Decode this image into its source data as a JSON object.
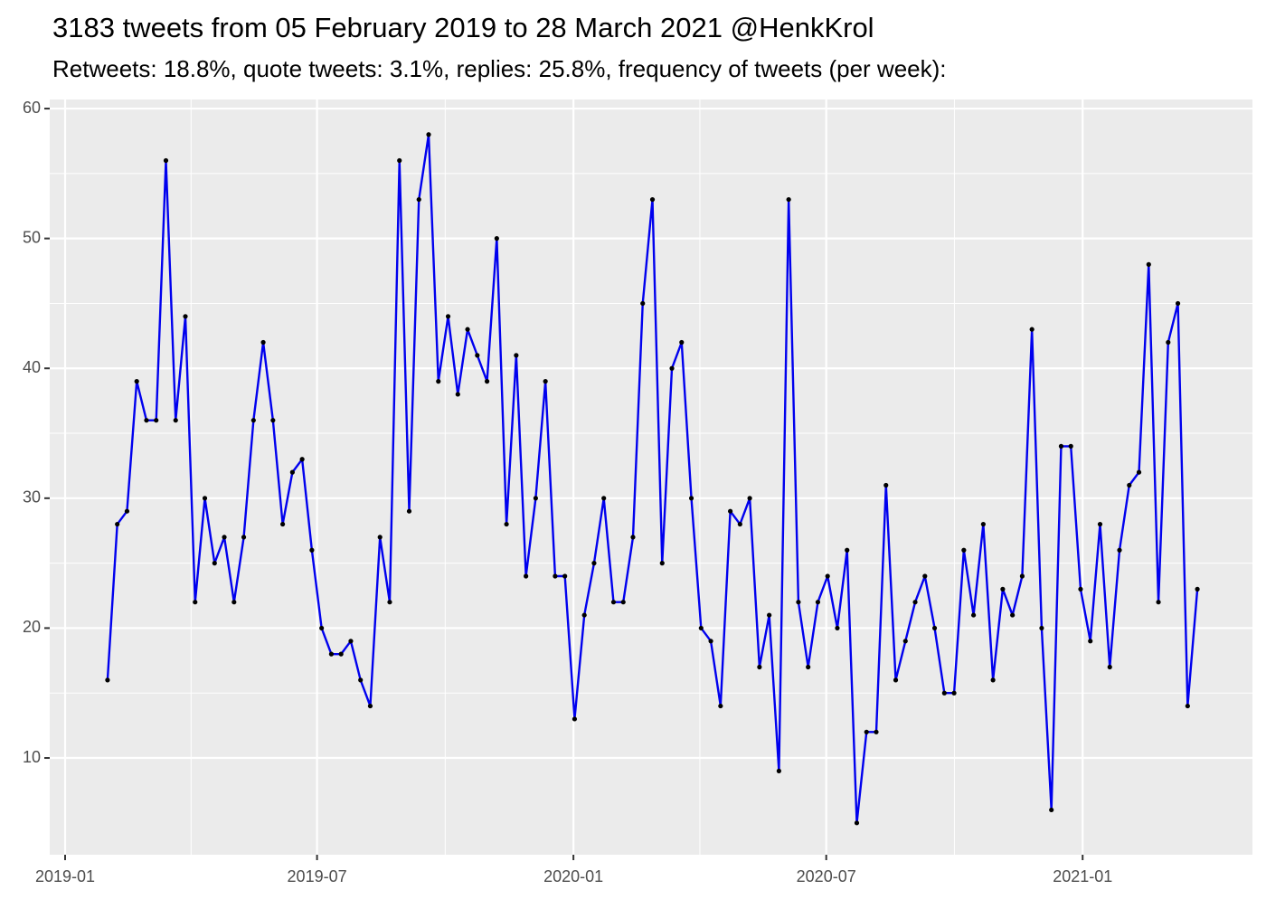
{
  "chart_data": {
    "type": "line",
    "title": "3183 tweets from 05 February 2019 to 28 March 2021 @HenkKrol",
    "subtitle": "Retweets: 18.8%, quote tweets: 3.1%, replies: 25.8%, frequency of tweets (per week):",
    "series": [
      {
        "color": "#0000ee",
        "marker_color": "#000000",
        "values": [
          16,
          28,
          29,
          39,
          36,
          36,
          56,
          36,
          44,
          22,
          30,
          25,
          27,
          22,
          27,
          36,
          42,
          36,
          28,
          32,
          33,
          26,
          20,
          18,
          18,
          19,
          16,
          14,
          27,
          22,
          56,
          29,
          53,
          58,
          39,
          44,
          38,
          43,
          41,
          39,
          50,
          28,
          41,
          24,
          30,
          39,
          24,
          24,
          13,
          21,
          25,
          30,
          22,
          22,
          27,
          45,
          53,
          25,
          40,
          42,
          30,
          20,
          19,
          14,
          29,
          28,
          30,
          17,
          21,
          9,
          53,
          22,
          17,
          22,
          24,
          20,
          26,
          5,
          12,
          12,
          31,
          16,
          19,
          22,
          24,
          20,
          15,
          15,
          26,
          21,
          28,
          16,
          23,
          21,
          24,
          43,
          20,
          6,
          34,
          34,
          23,
          19,
          28,
          17,
          26,
          31,
          32,
          48,
          22,
          42,
          45,
          14,
          23
        ]
      }
    ],
    "xlim": [
      -5.94,
      117.66
    ],
    "xticks": [
      {
        "value": -4.36,
        "label": "2019-01"
      },
      {
        "value": 21.53,
        "label": "2019-07"
      },
      {
        "value": 47.88,
        "label": "2020-01"
      },
      {
        "value": 73.86,
        "label": "2020-07"
      },
      {
        "value": 100.21,
        "label": "2021-01"
      }
    ],
    "ylim": [
      2.55,
      60.7
    ],
    "yticks": [
      10,
      20,
      30,
      40,
      50,
      60
    ],
    "grid": true
  }
}
